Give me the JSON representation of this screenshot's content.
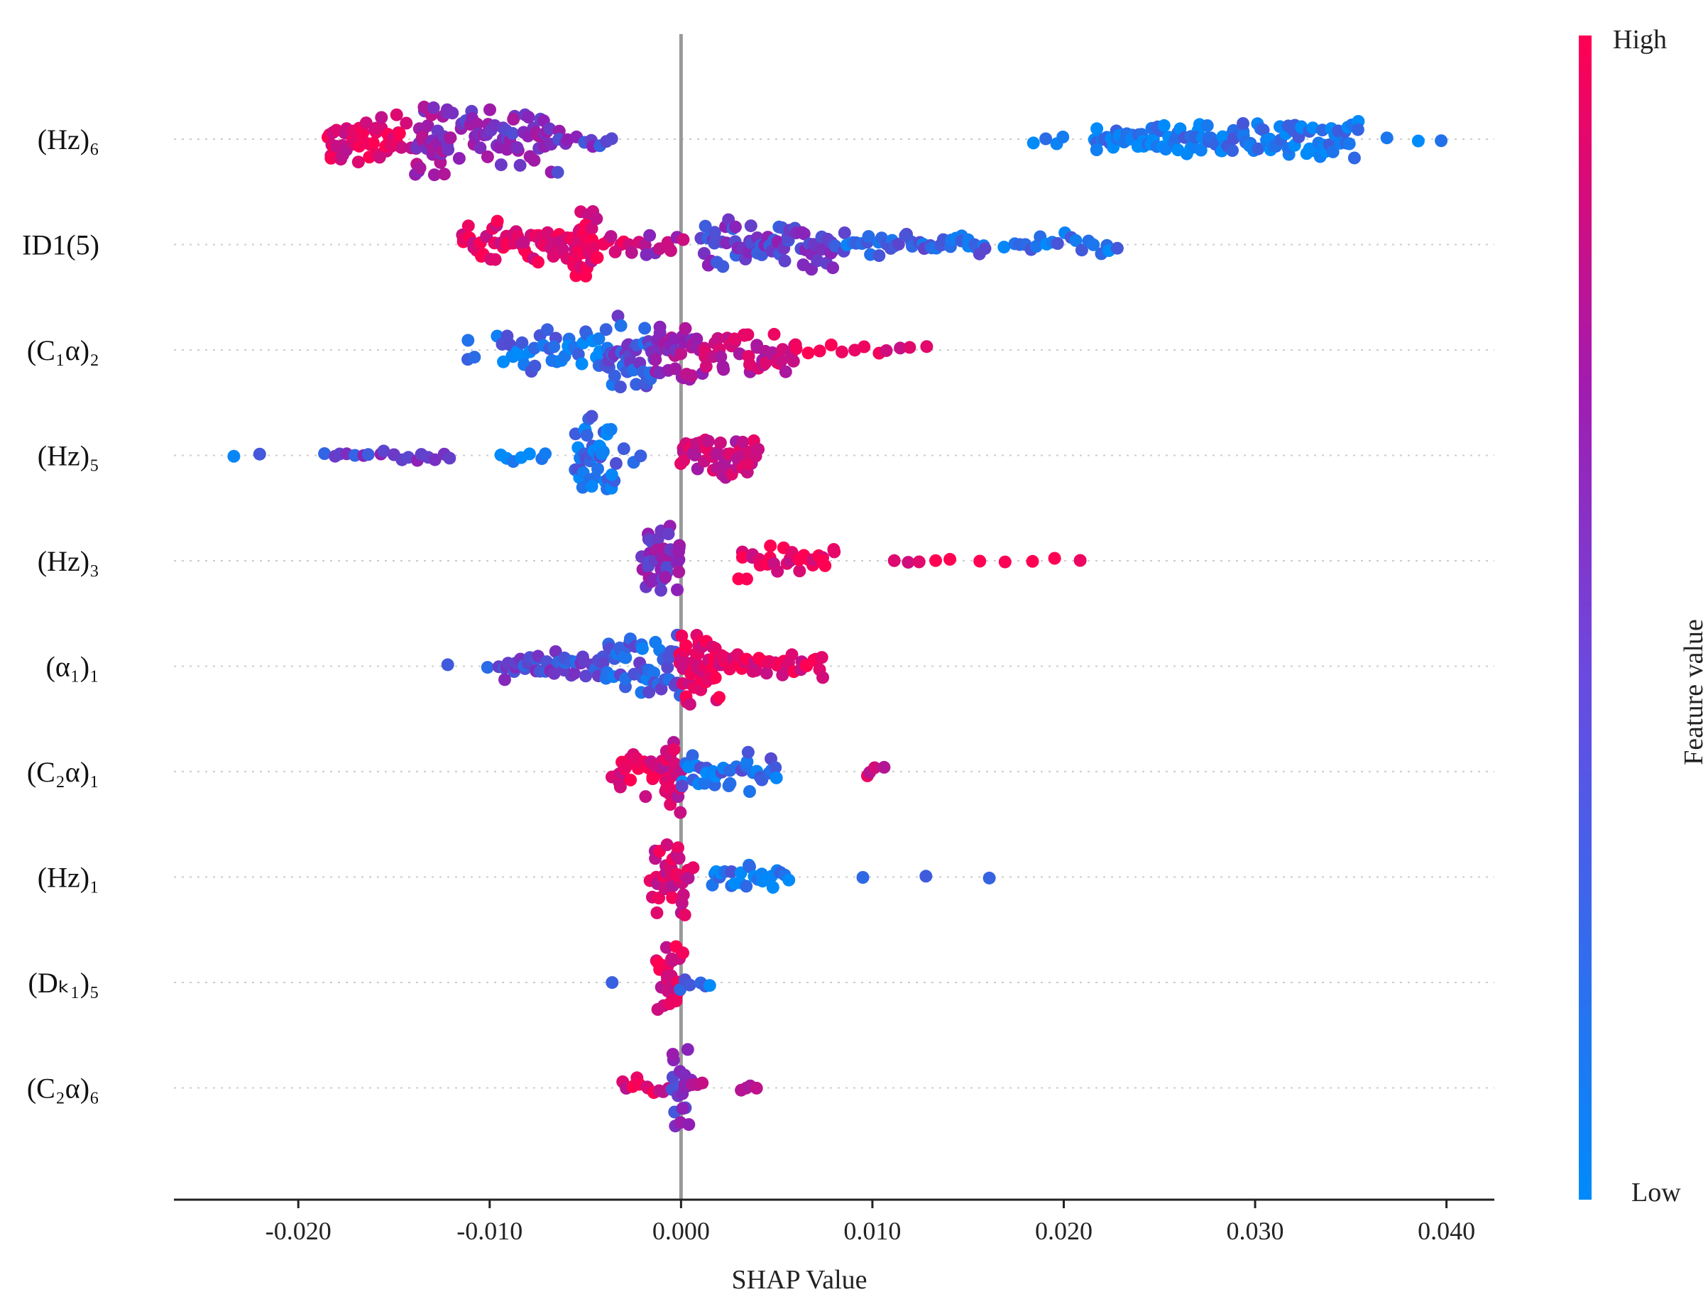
{
  "chart_data": {
    "type": "scatter",
    "subtype": "shap-beeswarm",
    "title": "",
    "xlabel": "SHAP Value",
    "xlim": [
      -0.0265,
      0.0425
    ],
    "xticks": [
      "-0.020",
      "-0.010",
      "0.000",
      "0.010",
      "0.020",
      "0.030",
      "0.040"
    ],
    "xtick_values": [
      -0.02,
      -0.01,
      0.0,
      0.01,
      0.02,
      0.03,
      0.04
    ],
    "colorbar": {
      "high": "High",
      "low": "Low",
      "title": "Feature value"
    },
    "colors": {
      "high": "#ff0d57",
      "low": "#1e88e5",
      "mid": "#8f1fb6",
      "axis_zero": "#999999"
    },
    "features": [
      {
        "name": "(Hz)6",
        "label": "(Hz)₆",
        "clusters": [
          {
            "min": -0.0185,
            "max": -0.0145,
            "n": 55,
            "color": 0.85,
            "spread": 0.6
          },
          {
            "min": -0.014,
            "max": -0.012,
            "n": 40,
            "color": 0.55,
            "spread": 1.0
          },
          {
            "min": -0.0115,
            "max": -0.0065,
            "n": 55,
            "color": 0.45,
            "spread": 0.8
          },
          {
            "min": -0.0065,
            "max": -0.0035,
            "n": 10,
            "color": 0.35,
            "spread": 0.2
          },
          {
            "min": 0.0185,
            "max": 0.02,
            "n": 4,
            "color": 0.1,
            "spread": 0.1
          },
          {
            "min": 0.0215,
            "max": 0.025,
            "n": 35,
            "color": 0.1,
            "spread": 0.2
          },
          {
            "min": 0.025,
            "max": 0.0355,
            "n": 90,
            "color": 0.08,
            "spread": 0.4
          },
          {
            "min": 0.037,
            "max": 0.0398,
            "n": 3,
            "color": 0.05,
            "spread": 0.0
          }
        ]
      },
      {
        "name": "ID1(5)",
        "label": "ID1(5)",
        "clusters": [
          {
            "min": -0.0115,
            "max": -0.0055,
            "n": 55,
            "color": 0.9,
            "spread": 0.5
          },
          {
            "min": -0.0055,
            "max": -0.0045,
            "n": 35,
            "color": 0.9,
            "spread": 1.0
          },
          {
            "min": -0.004,
            "max": -0.002,
            "n": 10,
            "color": 0.85,
            "spread": 0.2
          },
          {
            "min": -0.0018,
            "max": 0.0,
            "n": 8,
            "color": 0.6,
            "spread": 0.2
          },
          {
            "min": 0.001,
            "max": 0.008,
            "n": 65,
            "color": 0.35,
            "spread": 0.6
          },
          {
            "min": 0.008,
            "max": 0.016,
            "n": 45,
            "color": 0.2,
            "spread": 0.2
          },
          {
            "min": 0.017,
            "max": 0.0228,
            "n": 20,
            "color": 0.08,
            "spread": 0.2
          }
        ]
      },
      {
        "name": "(C1α)2",
        "label": "(C₁α)₂",
        "clusters": [
          {
            "min": -0.0112,
            "max": -0.0108,
            "n": 3,
            "color": 0.1,
            "spread": 0.2
          },
          {
            "min": -0.0095,
            "max": -0.004,
            "n": 40,
            "color": 0.12,
            "spread": 0.5
          },
          {
            "min": -0.004,
            "max": -0.0015,
            "n": 45,
            "color": 0.25,
            "spread": 1.0
          },
          {
            "min": -0.0015,
            "max": 0.001,
            "n": 35,
            "color": 0.55,
            "spread": 0.8
          },
          {
            "min": 0.001,
            "max": 0.006,
            "n": 45,
            "color": 0.75,
            "spread": 0.5
          },
          {
            "min": 0.006,
            "max": 0.0127,
            "n": 12,
            "color": 0.9,
            "spread": 0.1
          }
        ]
      },
      {
        "name": "(Hz)5",
        "label": "(Hz)₅",
        "clusters": [
          {
            "min": -0.0235,
            "max": -0.022,
            "n": 2,
            "color": 0.2,
            "spread": 0.0
          },
          {
            "min": -0.0185,
            "max": -0.012,
            "n": 18,
            "color": 0.35,
            "spread": 0.1
          },
          {
            "min": -0.0095,
            "max": -0.007,
            "n": 7,
            "color": 0.15,
            "spread": 0.1
          },
          {
            "min": -0.0055,
            "max": -0.0035,
            "n": 45,
            "color": 0.12,
            "spread": 1.0
          },
          {
            "min": -0.003,
            "max": -0.002,
            "n": 3,
            "color": 0.2,
            "spread": 0.1
          },
          {
            "min": 0.0,
            "max": 0.004,
            "n": 45,
            "color": 0.75,
            "spread": 0.5
          }
        ]
      },
      {
        "name": "(Hz)3",
        "label": "(Hz)₃",
        "clusters": [
          {
            "min": -0.002,
            "max": 0.0,
            "n": 40,
            "color": 0.45,
            "spread": 1.0
          },
          {
            "min": 0.003,
            "max": 0.008,
            "n": 30,
            "color": 0.9,
            "spread": 0.4
          },
          {
            "min": 0.011,
            "max": 0.014,
            "n": 5,
            "color": 0.95,
            "spread": 0.0
          },
          {
            "min": 0.0155,
            "max": 0.021,
            "n": 5,
            "color": 0.95,
            "spread": 0.0
          }
        ]
      },
      {
        "name": "(α1)1",
        "label": "(α₁)₁",
        "clusters": [
          {
            "min": -0.0122,
            "max": -0.01,
            "n": 2,
            "color": 0.1,
            "spread": 0.0
          },
          {
            "min": -0.0095,
            "max": -0.004,
            "n": 40,
            "color": 0.3,
            "spread": 0.3
          },
          {
            "min": -0.004,
            "max": 0.0,
            "n": 50,
            "color": 0.2,
            "spread": 0.7
          },
          {
            "min": 0.0,
            "max": 0.002,
            "n": 50,
            "color": 0.92,
            "spread": 1.0
          },
          {
            "min": 0.002,
            "max": 0.0075,
            "n": 35,
            "color": 0.9,
            "spread": 0.3
          }
        ]
      },
      {
        "name": "(C2α)1",
        "label": "(C₂α)₁",
        "clusters": [
          {
            "min": -0.0035,
            "max": -0.001,
            "n": 30,
            "color": 0.9,
            "spread": 0.6
          },
          {
            "min": -0.001,
            "max": 0.0,
            "n": 25,
            "color": 0.8,
            "spread": 1.0
          },
          {
            "min": 0.0,
            "max": 0.005,
            "n": 40,
            "color": 0.15,
            "spread": 0.5
          },
          {
            "min": 0.0097,
            "max": 0.0105,
            "n": 4,
            "color": 0.75,
            "spread": 0.2
          }
        ]
      },
      {
        "name": "(Hz)1",
        "label": "(Hz)₁",
        "clusters": [
          {
            "min": -0.0015,
            "max": 0.0005,
            "n": 40,
            "color": 0.8,
            "spread": 1.0
          },
          {
            "min": 0.0015,
            "max": 0.0055,
            "n": 25,
            "color": 0.1,
            "spread": 0.3
          },
          {
            "min": 0.0095,
            "max": 0.016,
            "n": 3,
            "color": 0.15,
            "spread": 0.0
          }
        ]
      },
      {
        "name": "(Dk1)5",
        "label": "(Dₖ₁)₅",
        "clusters": [
          {
            "min": -0.0037,
            "max": -0.0033,
            "n": 1,
            "color": 0.1,
            "spread": 0.0
          },
          {
            "min": -0.0012,
            "max": 0.0,
            "n": 30,
            "color": 0.85,
            "spread": 1.0
          },
          {
            "min": 0.0,
            "max": 0.0015,
            "n": 6,
            "color": 0.1,
            "spread": 0.2
          }
        ]
      },
      {
        "name": "(C2α)6",
        "label": "(C₂α)₆",
        "clusters": [
          {
            "min": -0.003,
            "max": -0.0005,
            "n": 12,
            "color": 0.85,
            "spread": 0.2
          },
          {
            "min": -0.0005,
            "max": 0.0005,
            "n": 20,
            "color": 0.4,
            "spread": 1.0
          },
          {
            "min": 0.0005,
            "max": 0.0012,
            "n": 3,
            "color": 0.8,
            "spread": 0.1
          },
          {
            "min": 0.0032,
            "max": 0.0038,
            "n": 4,
            "color": 0.75,
            "spread": 0.0
          }
        ]
      }
    ]
  }
}
